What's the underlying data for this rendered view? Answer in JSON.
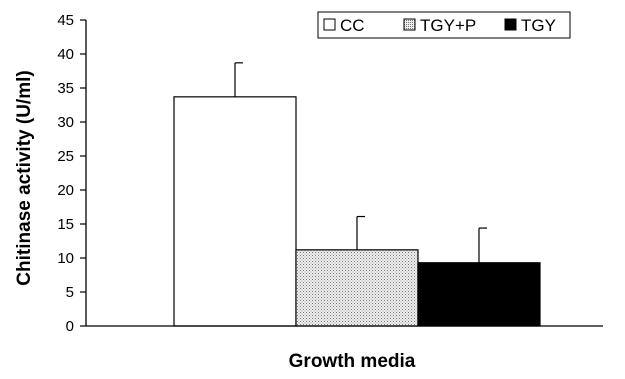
{
  "chart_data": {
    "type": "bar",
    "title": "",
    "xlabel": "Growth media",
    "ylabel": "Chitinase activity (U/ml)",
    "ylim": [
      0,
      45
    ],
    "yticks": [
      0,
      5,
      10,
      15,
      20,
      25,
      30,
      35,
      40,
      45
    ],
    "grid": false,
    "legend_position": "top-right",
    "series": [
      {
        "name": "CC",
        "value": 33.7,
        "error": 5.0,
        "fill": "#ffffff",
        "pattern": "none"
      },
      {
        "name": "TGY+P",
        "value": 11.2,
        "error": 4.9,
        "fill": "#cfcfcf",
        "pattern": "dotted"
      },
      {
        "name": "TGY",
        "value": 9.3,
        "error": 5.1,
        "fill": "#000000",
        "pattern": "none"
      }
    ]
  }
}
